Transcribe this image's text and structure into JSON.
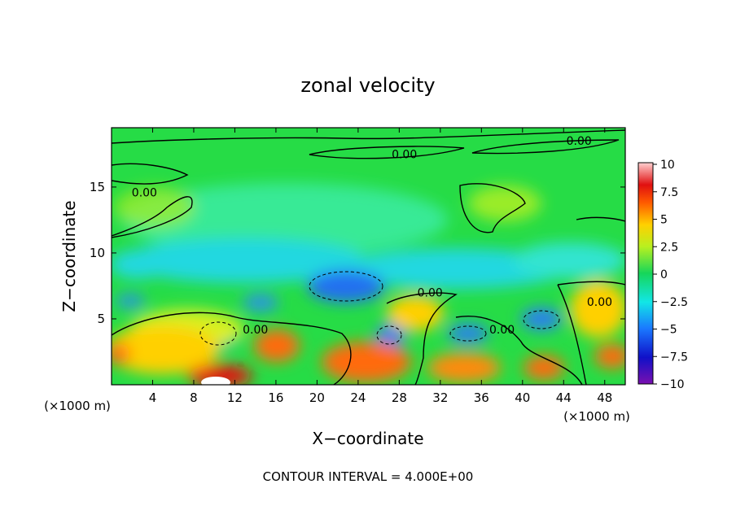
{
  "chart_data": {
    "type": "heatmap",
    "title": "zonal velocity",
    "xlabel": "X−coordinate",
    "ylabel": "Z−coordinate",
    "x_unit_left": "(×1000 m)",
    "x_unit_right": "(×1000 m)",
    "xlim": [
      0,
      50
    ],
    "ylim": [
      0,
      19.5
    ],
    "x_ticks": [
      "4",
      "8",
      "12",
      "16",
      "20",
      "24",
      "28",
      "32",
      "36",
      "40",
      "44",
      "48"
    ],
    "y_ticks": [
      "5",
      "10",
      "15"
    ],
    "colorbar": {
      "range": [
        -10,
        10
      ],
      "labels": [
        "10",
        "7.5",
        "5",
        "2.5",
        "0",
        "−2.5",
        "−5",
        "−7.5",
        "−10"
      ]
    },
    "contour_labels": [
      {
        "text": "0.00",
        "x": 28.5,
        "z": 17.5
      },
      {
        "text": "0.00",
        "x": 45.5,
        "z": 18.5
      },
      {
        "text": "0.00",
        "x": 3.2,
        "z": 14.6
      },
      {
        "text": "0.00",
        "x": 31.0,
        "z": 7.0
      },
      {
        "text": "0.00",
        "x": 14.0,
        "z": 4.2
      },
      {
        "text": "0.00",
        "x": 38.0,
        "z": 4.2
      },
      {
        "text": "0.00",
        "x": 47.5,
        "z": 6.3
      }
    ],
    "note": "CONTOUR INTERVAL = 4.000E+00"
  }
}
